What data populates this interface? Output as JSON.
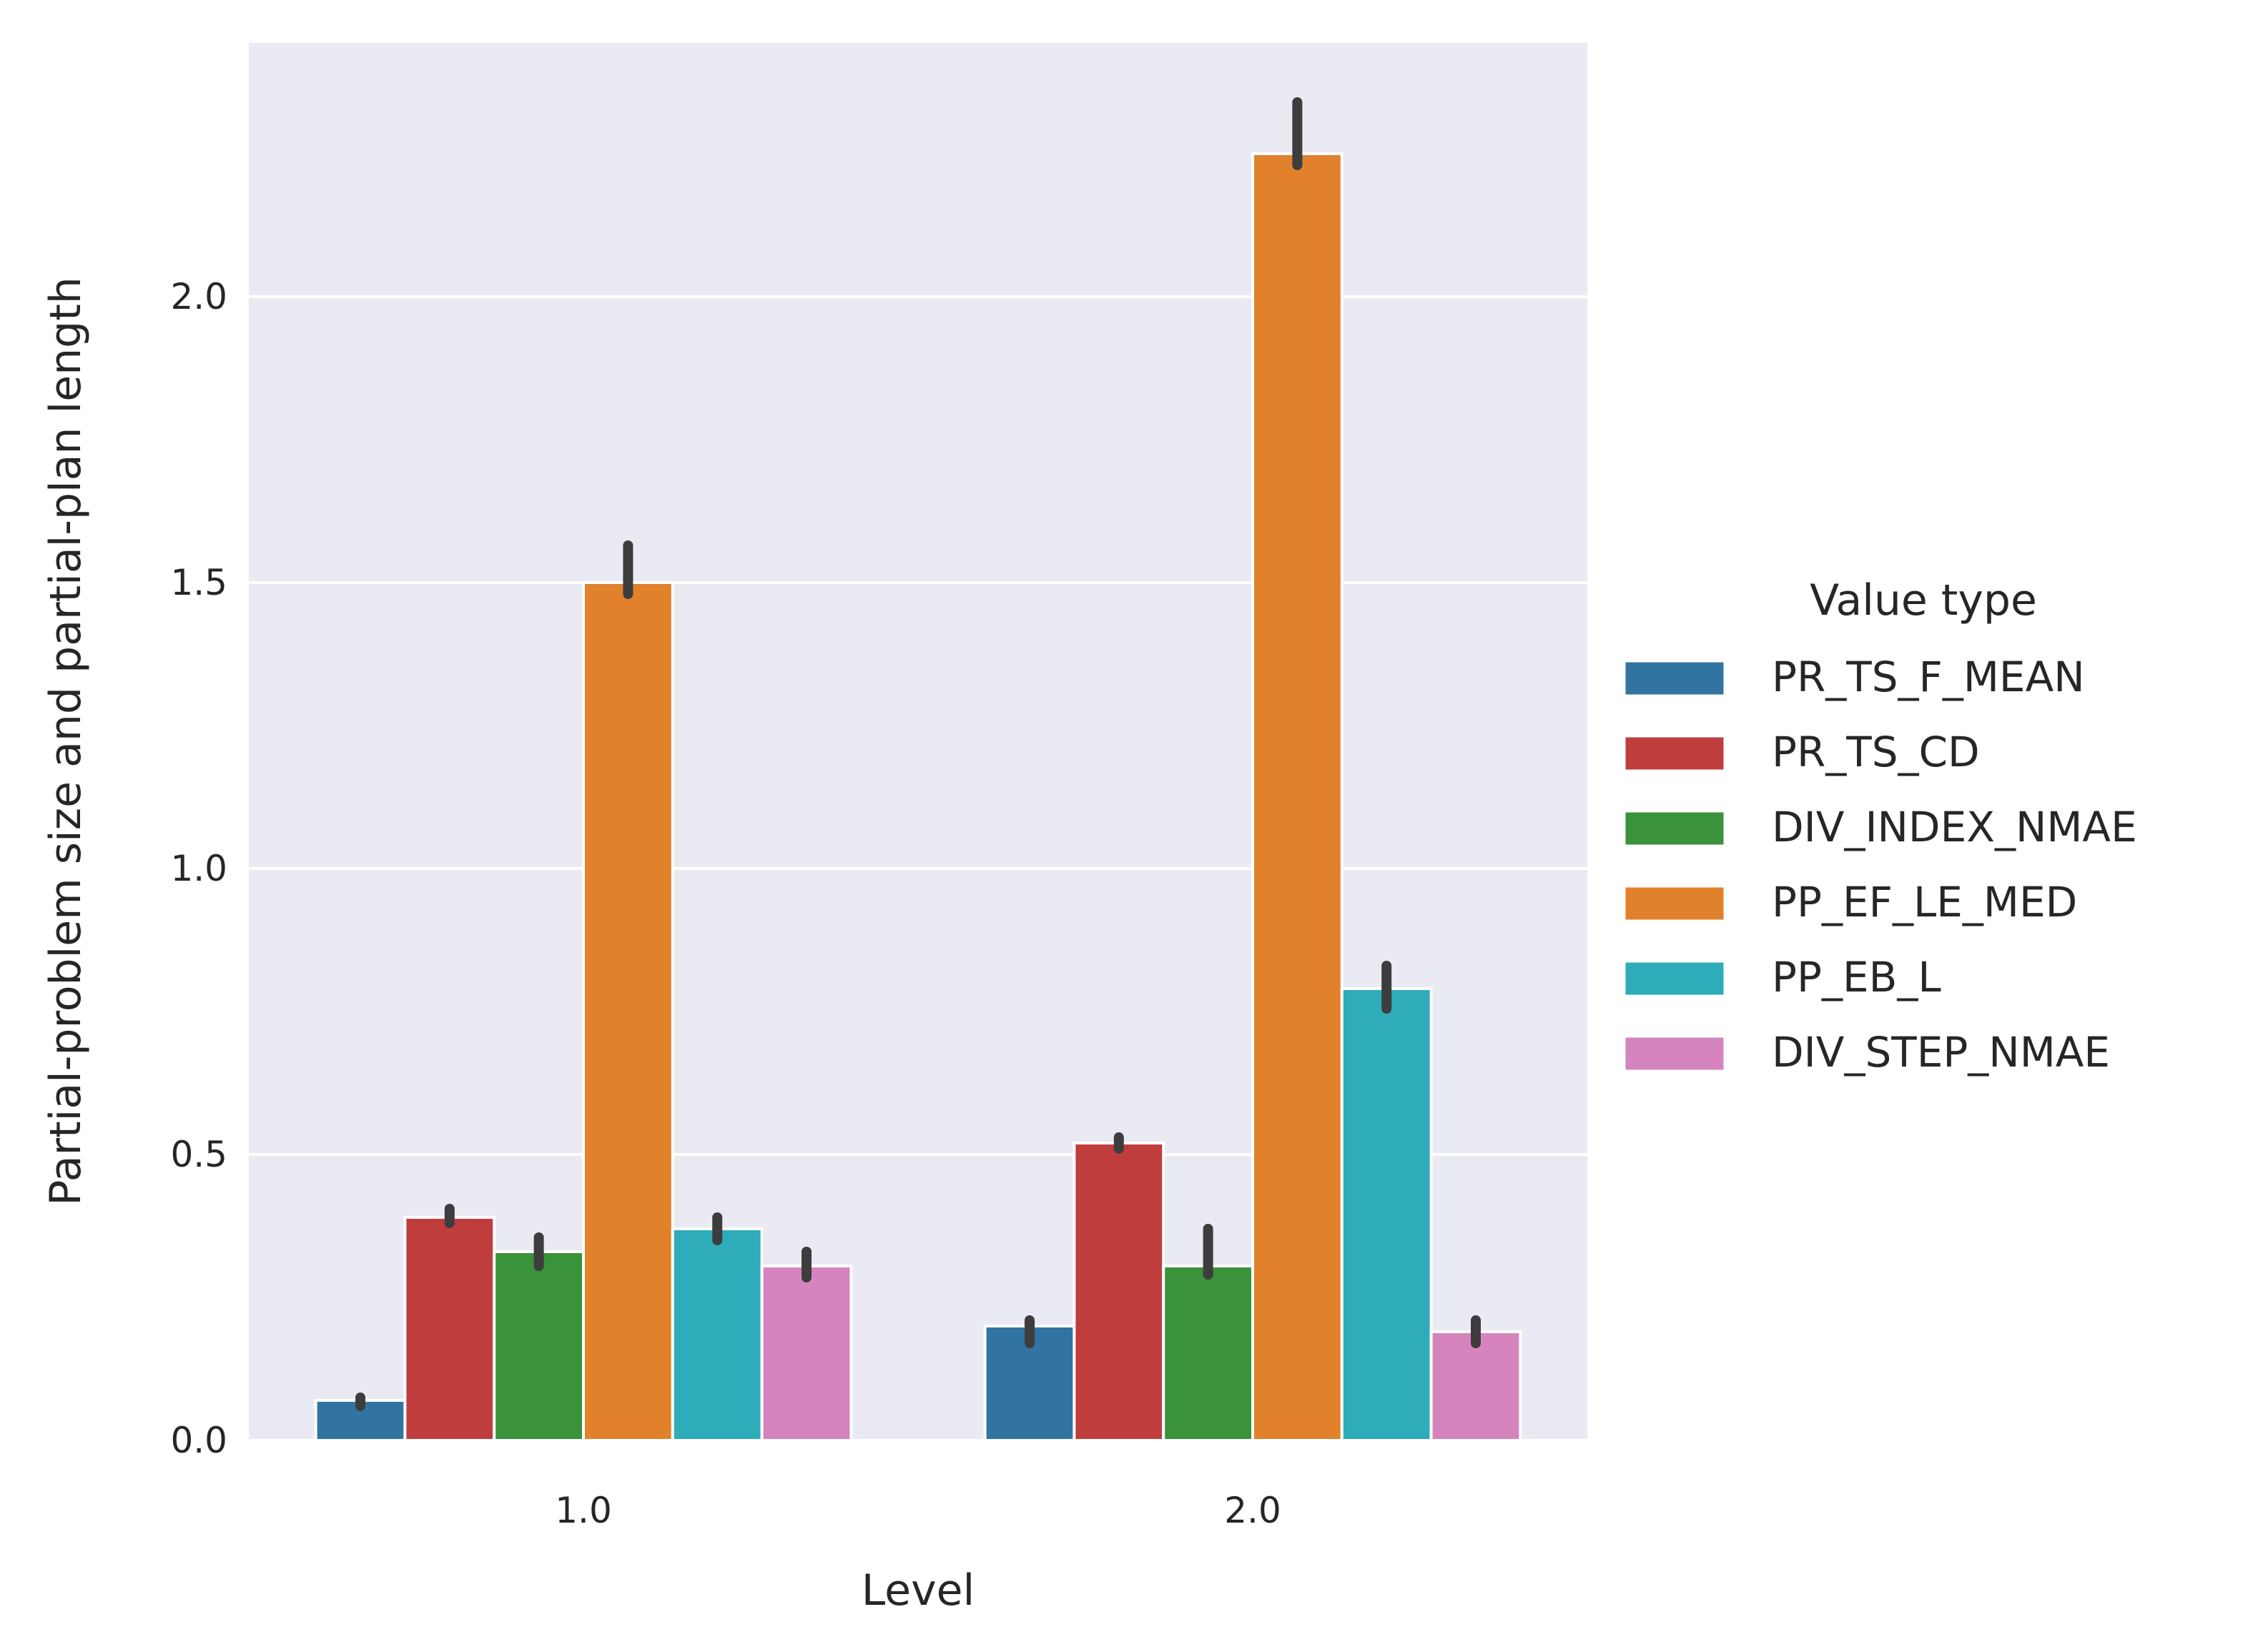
{
  "chart_data": {
    "type": "bar",
    "title": "",
    "xlabel": "Level",
    "ylabel": "Partial-problem size and partial-plan length",
    "categories": [
      "1.0",
      "2.0"
    ],
    "ylim": [
      0,
      2.45
    ],
    "yticks": [
      "0.0",
      "0.5",
      "1.0",
      "1.5",
      "2.0"
    ],
    "grid": true,
    "legend_title": "Value type",
    "legend_position": "right",
    "series": [
      {
        "name": "PR_TS_F_MEAN",
        "color": "#3274a1",
        "values": [
          0.07,
          0.2
        ],
        "ci": [
          [
            0.06,
            0.075
          ],
          [
            0.17,
            0.21
          ]
        ]
      },
      {
        "name": "PR_TS_CD",
        "color": "#c03d3e",
        "values": [
          0.39,
          0.52
        ],
        "ci": [
          [
            0.38,
            0.405
          ],
          [
            0.51,
            0.53
          ]
        ]
      },
      {
        "name": "DIV_INDEX_NMAE",
        "color": "#3a923a",
        "values": [
          0.33,
          0.305
        ],
        "ci": [
          [
            0.305,
            0.355
          ],
          [
            0.29,
            0.37
          ]
        ]
      },
      {
        "name": "PP_EF_LE_MED",
        "color": "#e1812c",
        "values": [
          1.5,
          2.25
        ],
        "ci": [
          [
            1.48,
            1.565
          ],
          [
            2.23,
            2.34
          ]
        ]
      },
      {
        "name": "PP_EB_L",
        "color": "#2eacb9",
        "values": [
          0.37,
          0.79
        ],
        "ci": [
          [
            0.35,
            0.39
          ],
          [
            0.755,
            0.83
          ]
        ]
      },
      {
        "name": "DIV_STEP_NMAE",
        "color": "#d684bd",
        "values": [
          0.305,
          0.19
        ],
        "ci": [
          [
            0.285,
            0.33
          ],
          [
            0.17,
            0.21
          ]
        ]
      }
    ]
  }
}
